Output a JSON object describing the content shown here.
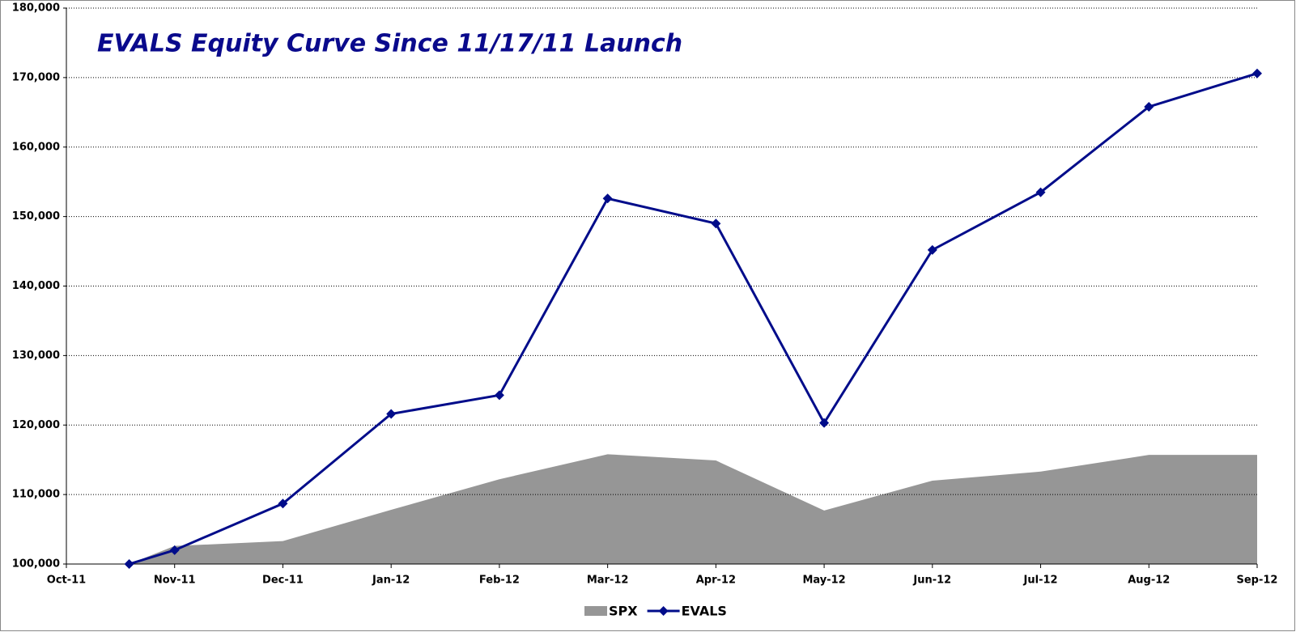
{
  "chart_data": {
    "type": "line",
    "title": "EVALS Equity Curve Since 11/17/11 Launch",
    "x": [
      0.58,
      1,
      2,
      3,
      4,
      5,
      6,
      7,
      8,
      9,
      10,
      11
    ],
    "xlim": [
      0,
      11
    ],
    "xticks": [
      {
        "value": 0,
        "label": "Oct-11"
      },
      {
        "value": 1,
        "label": "Nov-11"
      },
      {
        "value": 2,
        "label": "Dec-11"
      },
      {
        "value": 3,
        "label": "Jan-12"
      },
      {
        "value": 4,
        "label": "Feb-12"
      },
      {
        "value": 5,
        "label": "Mar-12"
      },
      {
        "value": 6,
        "label": "Apr-12"
      },
      {
        "value": 7,
        "label": "May-12"
      },
      {
        "value": 8,
        "label": "Jun-12"
      },
      {
        "value": 9,
        "label": "Jul-12"
      },
      {
        "value": 10,
        "label": "Aug-12"
      },
      {
        "value": 11,
        "label": "Sep-12"
      }
    ],
    "ylim": [
      100000,
      180000
    ],
    "yticks": [
      {
        "value": 100000,
        "label": "100,000"
      },
      {
        "value": 110000,
        "label": "110,000"
      },
      {
        "value": 120000,
        "label": "120,000"
      },
      {
        "value": 130000,
        "label": "130,000"
      },
      {
        "value": 140000,
        "label": "140,000"
      },
      {
        "value": 150000,
        "label": "150,000"
      },
      {
        "value": 160000,
        "label": "160,000"
      },
      {
        "value": 170000,
        "label": "170,000"
      },
      {
        "value": 180000,
        "label": "180,000"
      }
    ],
    "grid": true,
    "legend": "bottom",
    "series": [
      {
        "name": "SPX",
        "type": "area",
        "color": "#969696",
        "values": [
          100000,
          102600,
          103300,
          107800,
          112200,
          115800,
          114900,
          107700,
          112000,
          113300,
          115700,
          115700
        ]
      },
      {
        "name": "EVALS",
        "type": "line",
        "color": "#000c8a",
        "values": [
          100000,
          102000,
          108700,
          121600,
          124300,
          152600,
          149000,
          120300,
          145200,
          153500,
          165800,
          170600
        ]
      }
    ]
  }
}
